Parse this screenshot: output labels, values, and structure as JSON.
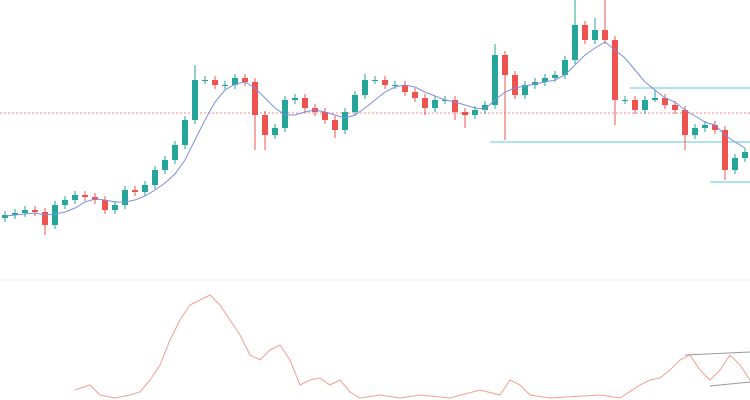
{
  "chart_data": [
    {
      "type": "candlestick",
      "ylim": [
        0,
        280
      ],
      "up_color": "#26a69a",
      "down_color": "#ef5350",
      "open": [
        62,
        65,
        67,
        70,
        68,
        55,
        75,
        80,
        85,
        83,
        80,
        70,
        75,
        90,
        88,
        95,
        110,
        120,
        135,
        160,
        200,
        200,
        195,
        195,
        202,
        198,
        165,
        145,
        152,
        180,
        182,
        172,
        168,
        160,
        150,
        168,
        185,
        200,
        200,
        195,
        195,
        188,
        182,
        172,
        180,
        180,
        168,
        165,
        170,
        175,
        225,
        205,
        185,
        195,
        198,
        202,
        205,
        220,
        255,
        240,
        250,
        240,
        180,
        180,
        170,
        180,
        182,
        175,
        170,
        145,
        152,
        155,
        150,
        110,
        122
      ],
      "high": [
        69,
        71,
        74,
        74,
        72,
        79,
        84,
        89,
        89,
        87,
        84,
        79,
        94,
        94,
        99,
        114,
        124,
        139,
        164,
        215,
        204,
        204,
        199,
        206,
        206,
        202,
        169,
        156,
        184,
        186,
        186,
        176,
        172,
        164,
        172,
        189,
        206,
        204,
        204,
        199,
        199,
        192,
        186,
        184,
        184,
        184,
        172,
        174,
        179,
        236,
        229,
        209,
        199,
        202,
        206,
        209,
        224,
        280,
        259,
        262,
        280,
        244,
        184,
        184,
        184,
        190,
        186,
        179,
        174,
        156,
        159,
        159,
        154,
        126,
        132
      ],
      "low": [
        58,
        61,
        63,
        64,
        45,
        51,
        71,
        76,
        79,
        76,
        66,
        66,
        71,
        84,
        84,
        91,
        106,
        116,
        131,
        156,
        196,
        191,
        191,
        191,
        194,
        130,
        130,
        141,
        148,
        176,
        168,
        164,
        156,
        142,
        146,
        164,
        181,
        196,
        191,
        191,
        184,
        178,
        165,
        168,
        176,
        160,
        152,
        161,
        166,
        171,
        140,
        181,
        181,
        191,
        194,
        198,
        201,
        216,
        236,
        236,
        236,
        155,
        176,
        166,
        166,
        178,
        171,
        166,
        130,
        141,
        148,
        146,
        100,
        106,
        118
      ],
      "close": [
        65,
        67,
        70,
        68,
        55,
        75,
        80,
        85,
        83,
        80,
        70,
        75,
        90,
        88,
        95,
        110,
        120,
        135,
        160,
        200,
        200,
        195,
        195,
        202,
        198,
        165,
        145,
        152,
        180,
        182,
        172,
        168,
        160,
        150,
        168,
        185,
        200,
        200,
        195,
        195,
        188,
        182,
        172,
        180,
        180,
        168,
        165,
        170,
        175,
        225,
        205,
        185,
        195,
        198,
        202,
        205,
        220,
        255,
        240,
        250,
        240,
        180,
        180,
        170,
        180,
        182,
        175,
        170,
        145,
        152,
        155,
        150,
        110,
        122,
        128
      ],
      "series": [
        {
          "color": "#7b8fe0",
          "values": [
            64,
            65,
            66,
            67,
            65,
            66,
            68,
            72,
            78,
            81,
            80,
            78,
            78,
            80,
            84,
            90,
            97,
            106,
            120,
            140,
            160,
            178,
            190,
            196,
            198,
            192,
            182,
            172,
            165,
            165,
            168,
            170,
            168,
            165,
            162,
            165,
            172,
            180,
            188,
            193,
            195,
            193,
            188,
            184,
            180,
            178,
            175,
            172,
            171,
            180,
            188,
            192,
            194,
            196,
            198,
            200,
            205,
            215,
            225,
            232,
            238,
            230,
            222,
            210,
            198,
            190,
            182,
            178,
            170,
            164,
            158,
            155,
            145,
            138,
            132
          ]
        }
      ],
      "levels": [
        {
          "value": 167,
          "from": 0,
          "color": "#f4a0a0",
          "dashed": true
        },
        {
          "value": 138,
          "from": 49,
          "color": "#7fd3e0",
          "dashed": false
        },
        {
          "value": 192,
          "from": 63,
          "color": "#7fd3e0",
          "dashed": false
        },
        {
          "value": 98,
          "from": 71,
          "color": "#7fd3e0",
          "dashed": false
        }
      ]
    },
    {
      "type": "line",
      "xlim": [
        0,
        750
      ],
      "ylim": [
        0,
        120
      ],
      "color": "#f0a090",
      "x": [
        75,
        90,
        100,
        115,
        130,
        140,
        150,
        160,
        170,
        180,
        190,
        200,
        210,
        220,
        230,
        240,
        250,
        260,
        270,
        280,
        290,
        300,
        310,
        320,
        330,
        340,
        350,
        360,
        380,
        400,
        420,
        450,
        480,
        500,
        510,
        520,
        530,
        550,
        600,
        620,
        640,
        650,
        660,
        670,
        680,
        690,
        700,
        710,
        720,
        730,
        740,
        750
      ],
      "values": [
        10,
        15,
        5,
        2,
        5,
        8,
        20,
        35,
        60,
        80,
        95,
        100,
        105,
        95,
        80,
        65,
        45,
        40,
        50,
        55,
        40,
        15,
        20,
        22,
        15,
        20,
        8,
        2,
        5,
        2,
        5,
        2,
        10,
        5,
        20,
        15,
        5,
        2,
        5,
        2,
        15,
        20,
        22,
        30,
        40,
        45,
        30,
        20,
        30,
        45,
        35,
        20
      ]
    }
  ]
}
